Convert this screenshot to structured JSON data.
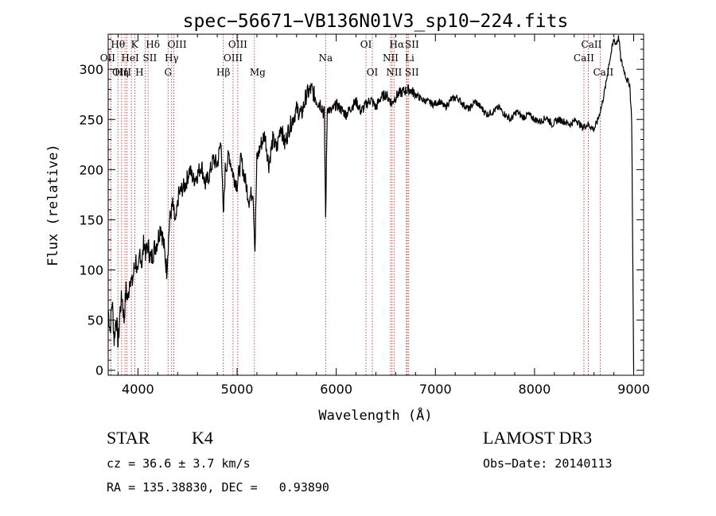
{
  "chart_data": {
    "type": "line",
    "title": "spec−56671−VB136N01V3_sp10−224.fits",
    "xlabel": "Wavelength (Å)",
    "ylabel": "Flux (relative)",
    "xlim": [
      3700,
      9100
    ],
    "ylim": [
      -5,
      335
    ],
    "xticks": [
      4000,
      5000,
      6000,
      7000,
      8000,
      9000
    ],
    "xtick_labels": [
      "4000",
      "5000",
      "6000",
      "7000",
      "8000",
      "9000"
    ],
    "yticks": [
      0,
      50,
      100,
      150,
      200,
      250,
      300
    ],
    "ytick_labels": [
      "0",
      "50",
      "100",
      "150",
      "200",
      "250",
      "300"
    ],
    "series": [
      {
        "name": "flux",
        "x": [
          3700,
          3720,
          3740,
          3760,
          3780,
          3800,
          3820,
          3840,
          3860,
          3880,
          3900,
          3920,
          3940,
          3960,
          3980,
          4000,
          4020,
          4040,
          4060,
          4080,
          4100,
          4130,
          4160,
          4200,
          4230,
          4260,
          4290,
          4320,
          4350,
          4380,
          4410,
          4440,
          4480,
          4520,
          4560,
          4600,
          4640,
          4680,
          4720,
          4760,
          4800,
          4840,
          4861,
          4880,
          4920,
          4960,
          5000,
          5040,
          5080,
          5120,
          5160,
          5180,
          5200,
          5240,
          5280,
          5320,
          5360,
          5400,
          5440,
          5480,
          5520,
          5560,
          5600,
          5650,
          5700,
          5750,
          5800,
          5850,
          5880,
          5893,
          5910,
          5950,
          6000,
          6050,
          6100,
          6150,
          6200,
          6250,
          6300,
          6350,
          6400,
          6450,
          6500,
          6550,
          6563,
          6580,
          6620,
          6680,
          6740,
          6800,
          6860,
          6920,
          6980,
          7040,
          7100,
          7160,
          7220,
          7280,
          7340,
          7400,
          7460,
          7520,
          7580,
          7640,
          7700,
          7760,
          7820,
          7880,
          7940,
          8000,
          8060,
          8120,
          8180,
          8240,
          8300,
          8360,
          8420,
          8480,
          8540,
          8600,
          8640,
          8680,
          8720,
          8750,
          8780,
          8800,
          8820,
          8850,
          8870,
          8900,
          8930,
          8960,
          8980,
          8990,
          9000
        ],
        "values": [
          60,
          40,
          70,
          30,
          55,
          25,
          60,
          75,
          50,
          80,
          70,
          95,
          85,
          100,
          110,
          90,
          120,
          105,
          130,
          115,
          125,
          110,
          120,
          130,
          145,
          125,
          100,
          150,
          165,
          145,
          175,
          180,
          185,
          200,
          190,
          195,
          205,
          185,
          195,
          210,
          205,
          230,
          150,
          200,
          215,
          195,
          185,
          210,
          190,
          170,
          180,
          120,
          210,
          225,
          235,
          205,
          230,
          220,
          245,
          225,
          240,
          250,
          260,
          255,
          275,
          280,
          270,
          265,
          255,
          150,
          262,
          258,
          265,
          260,
          255,
          262,
          268,
          258,
          265,
          270,
          262,
          272,
          275,
          268,
          265,
          270,
          275,
          278,
          280,
          275,
          270,
          268,
          265,
          268,
          262,
          270,
          272,
          265,
          260,
          268,
          262,
          255,
          258,
          262,
          255,
          250,
          258,
          252,
          255,
          250,
          248,
          252,
          245,
          250,
          248,
          245,
          250,
          242,
          245,
          240,
          250,
          265,
          285,
          305,
          320,
          330,
          325,
          332,
          310,
          300,
          290,
          285,
          250,
          120,
          0
        ]
      }
    ],
    "lines": [
      {
        "name": "Hθ",
        "x": 3798
      },
      {
        "name": "OII",
        "x": 3727
      },
      {
        "name": "OIII",
        "x": 3869
      },
      {
        "name": "K",
        "x": 3934
      },
      {
        "name": "HeI",
        "x": 3889
      },
      {
        "name": "Hη",
        "x": 3835
      },
      {
        "name": "H",
        "x": 3968
      },
      {
        "name": "Hδ",
        "x": 4102
      },
      {
        "name": "SII",
        "x": 4072
      },
      {
        "name": "OIII",
        "x": 4363
      },
      {
        "name": "Hγ",
        "x": 4340
      },
      {
        "name": "G",
        "x": 4304
      },
      {
        "name": "OIII",
        "x": 5007
      },
      {
        "name": "OIII",
        "x": 4959
      },
      {
        "name": "Hβ",
        "x": 4861
      },
      {
        "name": "Mg",
        "x": 5175
      },
      {
        "name": "Na",
        "x": 5893
      },
      {
        "name": "OI",
        "x": 6300
      },
      {
        "name": "OI",
        "x": 6364
      },
      {
        "name": "Hα",
        "x": 6563
      },
      {
        "name": "NII",
        "x": 6548
      },
      {
        "name": "NII",
        "x": 6583
      },
      {
        "name": "SII",
        "x": 6716
      },
      {
        "name": "SII",
        "x": 6731
      },
      {
        "name": "Li",
        "x": 6708
      },
      {
        "name": "CaII",
        "x": 8542
      },
      {
        "name": "CaII",
        "x": 8498
      },
      {
        "name": "CaII",
        "x": 8662
      }
    ]
  },
  "info": {
    "object_class": "STAR",
    "subclass": "K4",
    "survey": "LAMOST DR3",
    "redshift_text": "cz = 36.6 ± 3.7 km/s",
    "obs_date_text": "Obs−Date: 20140113",
    "coords_text": "RA = 135.38830, DEC =   0.93890"
  },
  "colors": {
    "spectrum": "#000000",
    "line_marker": "#b22222"
  }
}
